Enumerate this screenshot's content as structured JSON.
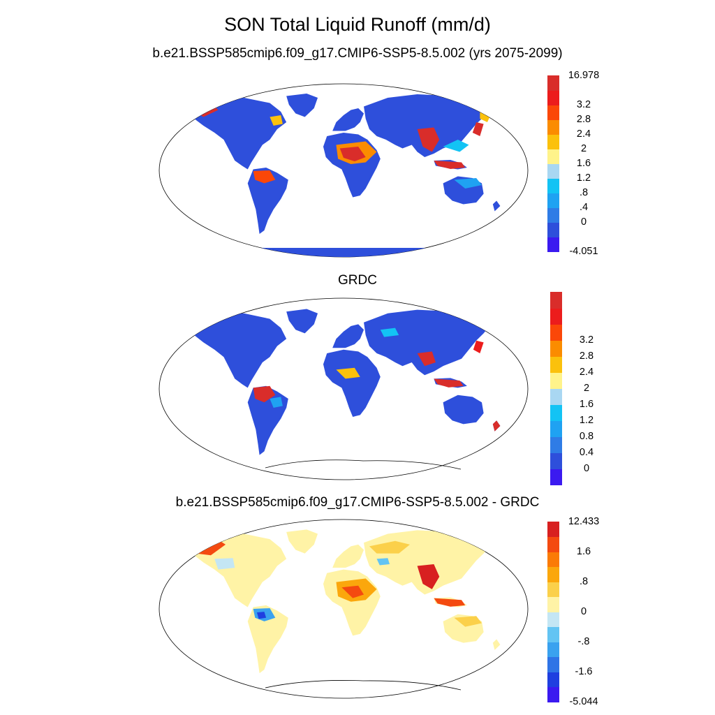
{
  "title": "SON Total Liquid Runoff (mm/d)",
  "panels": [
    {
      "id": "model",
      "title": "b.e21.BSSP585cmip6.f09_g17.CMIP6-SSP5-8.5.002 (yrs 2075-2099)",
      "colorbar": {
        "colors": [
          "#3b1af0",
          "#2e4fdb",
          "#2f7ce6",
          "#1fa2f2",
          "#13c3f4",
          "#a9d7f2",
          "#fff38a",
          "#fbc10c",
          "#fb8c00",
          "#fb4708",
          "#ec1c1c",
          "#d92d2a"
        ],
        "labels": [
          "-4.051",
          "0",
          ".4",
          ".8",
          "1.2",
          "1.6",
          "2",
          "2.4",
          "2.8",
          "3.2",
          "16.978"
        ]
      }
    },
    {
      "id": "grdc",
      "title": "GRDC",
      "colorbar": {
        "colors": [
          "#3b1af0",
          "#2e4fdb",
          "#2f7ce6",
          "#1fa2f2",
          "#13c3f4",
          "#a9d7f2",
          "#fff38a",
          "#fbc10c",
          "#fb8c00",
          "#fb4708",
          "#ec1c1c",
          "#d92d2a"
        ],
        "labels": [
          "0",
          "0.4",
          "0.8",
          "1.2",
          "1.6",
          "2",
          "2.4",
          "2.8",
          "3.2"
        ]
      }
    },
    {
      "id": "diff",
      "title": "b.e21.BSSP585cmip6.f09_g17.CMIP6-SSP5-8.5.002 - GRDC",
      "colorbar": {
        "colors": [
          "#3b1af0",
          "#1f3fe0",
          "#2f74e6",
          "#3aa2ef",
          "#63c4f3",
          "#c4e6f4",
          "#fff3a6",
          "#fbd04a",
          "#fba70c",
          "#fb7b06",
          "#f44a10",
          "#d82020"
        ],
        "labels": [
          "-5.044",
          "-1.6",
          "-.8",
          "0",
          ".8",
          "1.6",
          "12.433"
        ]
      }
    }
  ]
}
